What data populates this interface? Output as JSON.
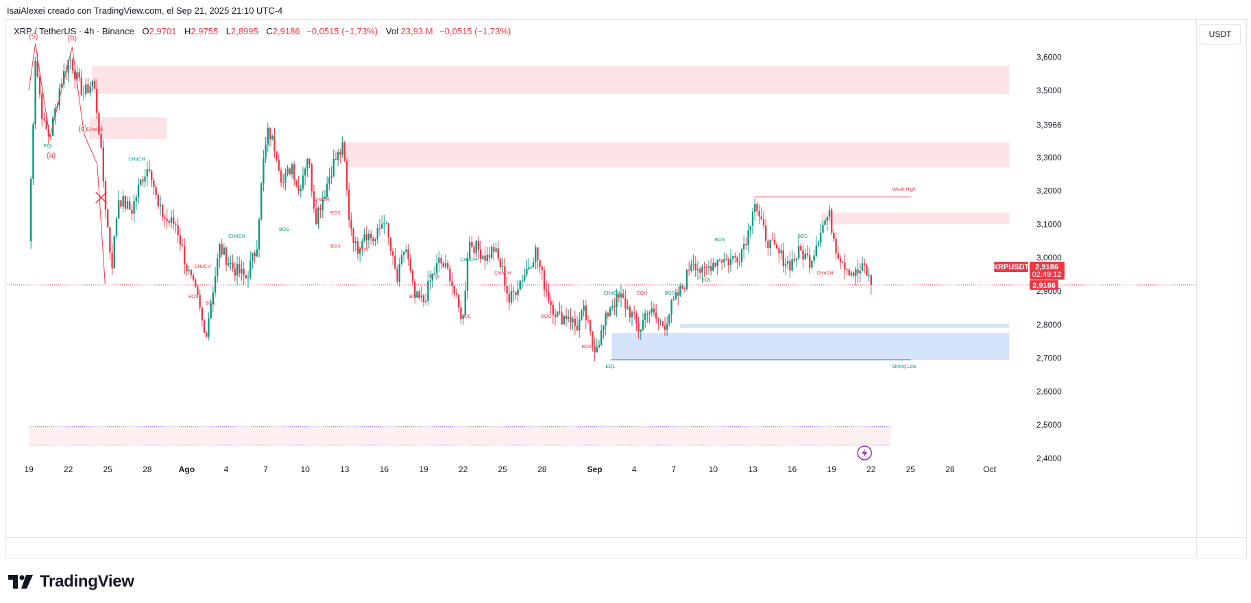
{
  "header": {
    "credit": "IsaiAlexei creado con TradingView.com, el Sep 21, 2025 21:10 UTC-4",
    "symbol": "XRP / TetherUS · 4h · Binance",
    "open_label": "O",
    "open": "2,9701",
    "high_label": "H",
    "high": "2,9755",
    "low_label": "L",
    "low": "2,8995",
    "close_label": "C",
    "close": "2,9186",
    "change": "−0,0515 (−1,73%)",
    "vol_label": "Vol",
    "vol": "23,93 M",
    "vol_change": "−0,0515 (−1,73%)",
    "currency_button": "USDT"
  },
  "branding": {
    "logo_text": "TradingView",
    "logo_icon": "tradingview-logo-icon"
  },
  "chart_data": {
    "type": "candlestick",
    "symbol": "XRPUSDT",
    "timeframe": "4h",
    "ylim": [
      2.37,
      3.68
    ],
    "y_ticks": [
      "3,6000",
      "3,5000",
      "3,3966",
      "3,3000",
      "3,2000",
      "3,1000",
      "3,0000",
      "2,9000",
      "2,8000",
      "2,7000",
      "2,6000",
      "2,5000",
      "2,4000"
    ],
    "y_tick_values": [
      3.6,
      3.5,
      3.3966,
      3.3,
      3.2,
      3.1,
      3.0,
      2.9,
      2.8,
      2.7,
      2.6,
      2.5,
      2.4
    ],
    "x_ticks": [
      "19",
      "22",
      "25",
      "28",
      "Ago",
      "4",
      "7",
      "10",
      "13",
      "16",
      "19",
      "22",
      "25",
      "28",
      "Sep",
      "4",
      "7",
      "10",
      "13",
      "16",
      "19",
      "22",
      "25",
      "28",
      "Oct"
    ],
    "x_tick_days": [
      0,
      3,
      6,
      9,
      12,
      15,
      18,
      21,
      24,
      27,
      30,
      33,
      36,
      39,
      43,
      46,
      49,
      52,
      55,
      58,
      61,
      64,
      67,
      70,
      73
    ],
    "x_bold": [
      "Ago",
      "Sep"
    ],
    "last_price": 2.9186,
    "price_label": "XRPUSDT",
    "price_value": "2,9186",
    "countdown": "02:49:12",
    "price_line_value": "2,9186",
    "colors": {
      "up": "#089981",
      "down": "#f23645",
      "zone_red": "#fce4e6",
      "zone_blue": "#d6e4fb"
    },
    "path": [
      [
        0,
        3.05
      ],
      [
        0.5,
        3.6
      ],
      [
        1.1,
        3.4
      ],
      [
        1.6,
        3.36
      ],
      [
        2.4,
        3.52
      ],
      [
        3.1,
        3.6
      ],
      [
        3.8,
        3.52
      ],
      [
        4.2,
        3.49
      ],
      [
        4.9,
        3.53
      ],
      [
        5.3,
        3.4
      ],
      [
        5.8,
        3.17
      ],
      [
        6.3,
        2.97
      ],
      [
        6.8,
        3.18
      ],
      [
        7.8,
        3.14
      ],
      [
        8.6,
        3.24
      ],
      [
        9.2,
        3.28
      ],
      [
        9.8,
        3.15
      ],
      [
        10.5,
        3.11
      ],
      [
        11.2,
        3.1
      ],
      [
        12.0,
        2.97
      ],
      [
        12.8,
        2.88
      ],
      [
        13.4,
        2.76
      ],
      [
        13.8,
        2.86
      ],
      [
        14.5,
        3.03
      ],
      [
        15.5,
        2.97
      ],
      [
        16.5,
        2.94
      ],
      [
        17.3,
        3.03
      ],
      [
        17.8,
        3.28
      ],
      [
        18.2,
        3.38
      ],
      [
        18.8,
        3.32
      ],
      [
        19.3,
        3.22
      ],
      [
        20.0,
        3.28
      ],
      [
        20.5,
        3.2
      ],
      [
        21.2,
        3.31
      ],
      [
        21.8,
        3.12
      ],
      [
        22.5,
        3.2
      ],
      [
        23.1,
        3.28
      ],
      [
        23.9,
        3.33
      ],
      [
        24.3,
        3.13
      ],
      [
        24.9,
        3.02
      ],
      [
        25.5,
        3.08
      ],
      [
        26.3,
        3.05
      ],
      [
        27.0,
        3.12
      ],
      [
        27.6,
        3.0
      ],
      [
        28.0,
        2.93
      ],
      [
        28.6,
        3.04
      ],
      [
        29.3,
        2.88
      ],
      [
        30.0,
        2.87
      ],
      [
        30.5,
        2.93
      ],
      [
        31.2,
        2.99
      ],
      [
        32.0,
        2.95
      ],
      [
        32.6,
        2.85
      ],
      [
        33.0,
        2.82
      ],
      [
        33.4,
        3.05
      ],
      [
        34.0,
        3.03
      ],
      [
        34.8,
        3.0
      ],
      [
        35.3,
        3.03
      ],
      [
        36.0,
        2.96
      ],
      [
        36.5,
        2.87
      ],
      [
        37.3,
        2.93
      ],
      [
        37.9,
        2.97
      ],
      [
        38.5,
        3.02
      ],
      [
        39.1,
        2.93
      ],
      [
        39.7,
        2.86
      ],
      [
        40.3,
        2.82
      ],
      [
        41.0,
        2.83
      ],
      [
        41.6,
        2.79
      ],
      [
        42.2,
        2.84
      ],
      [
        42.9,
        2.73
      ],
      [
        43.4,
        2.76
      ],
      [
        44.2,
        2.86
      ],
      [
        45.0,
        2.88
      ],
      [
        45.8,
        2.83
      ],
      [
        46.4,
        2.78
      ],
      [
        47.0,
        2.85
      ],
      [
        47.8,
        2.81
      ],
      [
        48.3,
        2.8
      ],
      [
        48.9,
        2.86
      ],
      [
        49.8,
        2.92
      ],
      [
        50.4,
        3.0
      ],
      [
        51.2,
        2.95
      ],
      [
        51.8,
        2.98
      ],
      [
        52.5,
        3.0
      ],
      [
        53.2,
        2.99
      ],
      [
        54.0,
        3.01
      ],
      [
        54.7,
        3.08
      ],
      [
        55.1,
        3.18
      ],
      [
        55.6,
        3.1
      ],
      [
        56.3,
        3.04
      ],
      [
        57.0,
        3.01
      ],
      [
        57.8,
        2.98
      ],
      [
        58.6,
        3.02
      ],
      [
        59.4,
        2.99
      ],
      [
        60.2,
        3.09
      ],
      [
        60.8,
        3.13
      ],
      [
        61.4,
        3.02
      ],
      [
        62.2,
        2.97
      ],
      [
        62.8,
        2.95
      ],
      [
        63.5,
        2.97
      ],
      [
        64.0,
        2.92
      ]
    ],
    "zones": [
      {
        "kind": "supply",
        "x0": 4.8,
        "x1": 74.5,
        "y0": 3.49,
        "y1": 3.575
      },
      {
        "kind": "supply",
        "x0": 4.6,
        "x1": 10.5,
        "y0": 3.355,
        "y1": 3.42
      },
      {
        "kind": "supply",
        "x0": 24.1,
        "x1": 74.5,
        "y0": 3.27,
        "y1": 3.345
      },
      {
        "kind": "supply",
        "x0": 60.2,
        "x1": 74.5,
        "y0": 3.1,
        "y1": 3.135
      },
      {
        "kind": "demand",
        "x0": 49.5,
        "x1": 74.5,
        "y0": 2.79,
        "y1": 2.802
      },
      {
        "kind": "demand",
        "x0": 44.3,
        "x1": 74.5,
        "y0": 2.695,
        "y1": 2.775
      },
      {
        "kind": "light",
        "x0": 0,
        "x1": 65.5,
        "y0": 2.44,
        "y1": 2.495
      }
    ],
    "level_lines": [
      {
        "x0": 55.1,
        "x1": 67.0,
        "y": 3.182,
        "color": "#f23645"
      },
      {
        "x0": 44.2,
        "x1": 67.0,
        "y": 2.695,
        "color": "#089981"
      }
    ],
    "dotted_lines": [
      {
        "x0": 0,
        "x1": 65.5,
        "y": 2.495,
        "color": "#7b61ff"
      },
      {
        "x0": 0,
        "x1": 65.5,
        "y": 2.44,
        "color": "#7b61ff"
      }
    ],
    "structure_labels": [
      {
        "text": "BOS",
        "day": 12.5,
        "price": 2.88,
        "color": "#f23645"
      },
      {
        "text": "BOS",
        "day": 13.8,
        "price": 2.86,
        "color": "#f23645"
      },
      {
        "text": "BOS",
        "day": 19.4,
        "price": 3.08,
        "color": "#089981"
      },
      {
        "text": "BOS",
        "day": 23.3,
        "price": 3.03,
        "color": "#f23645"
      },
      {
        "text": "BOS",
        "day": 25.4,
        "price": 3.02,
        "color": "#f23645"
      },
      {
        "text": "BOS",
        "day": 29.3,
        "price": 2.88,
        "color": "#f23645"
      },
      {
        "text": "BOS",
        "day": 30.8,
        "price": 2.94,
        "color": "#f23645"
      },
      {
        "text": "BOS",
        "day": 33.2,
        "price": 2.82,
        "color": "#f23645"
      },
      {
        "text": "BOS",
        "day": 39.3,
        "price": 2.82,
        "color": "#f23645"
      },
      {
        "text": "BOS",
        "day": 42.4,
        "price": 2.73,
        "color": "#f23645"
      },
      {
        "text": "BOS",
        "day": 48.7,
        "price": 2.89,
        "color": "#089981"
      },
      {
        "text": "BOS",
        "day": 52.5,
        "price": 3.05,
        "color": "#089981"
      },
      {
        "text": "BOS",
        "day": 58.8,
        "price": 3.06,
        "color": "#089981"
      },
      {
        "text": "BOS",
        "day": 23.3,
        "price": 3.13,
        "color": "#f23645"
      },
      {
        "text": "CHoCH",
        "day": 8.2,
        "price": 3.29,
        "color": "#089981"
      },
      {
        "text": "CHoCH",
        "day": 5.0,
        "price": 3.38,
        "color": "#f23645"
      },
      {
        "text": "CHoCH",
        "day": 13.2,
        "price": 2.97,
        "color": "#f23645"
      },
      {
        "text": "CHoCH",
        "day": 15.8,
        "price": 3.06,
        "color": "#089981"
      },
      {
        "text": "CHoCH",
        "day": 22.2,
        "price": 3.17,
        "color": "#f23645"
      },
      {
        "text": "CHoCH",
        "day": 33.4,
        "price": 2.99,
        "color": "#089981"
      },
      {
        "text": "CHoCH",
        "day": 36.0,
        "price": 2.95,
        "color": "#f23645"
      },
      {
        "text": "CHoCH",
        "day": 44.3,
        "price": 2.89,
        "color": "#089981"
      },
      {
        "text": "CHoCH",
        "day": 60.5,
        "price": 2.95,
        "color": "#f23645"
      },
      {
        "text": "EQL",
        "day": 1.5,
        "price": 3.33,
        "color": "#089981"
      },
      {
        "text": "EQL",
        "day": 44.2,
        "price": 2.67,
        "color": "#089981"
      },
      {
        "text": "EQL",
        "day": 51.5,
        "price": 2.93,
        "color": "#089981"
      },
      {
        "text": "EQH",
        "day": 46.6,
        "price": 2.89,
        "color": "#f23645"
      },
      {
        "text": "Weak High",
        "day": 66.5,
        "price": 3.2,
        "color": "#f23645"
      },
      {
        "text": "Strong Low",
        "day": 66.5,
        "price": 2.67,
        "color": "#089981"
      }
    ],
    "wave_labels": [
      {
        "text": "(5)",
        "day": 0.35,
        "price": 3.655
      },
      {
        "text": "(b)",
        "day": 3.3,
        "price": 3.65
      },
      {
        "text": "(c)",
        "day": 4.1,
        "price": 3.38
      },
      {
        "text": "(a)",
        "day": 1.7,
        "price": 3.3
      }
    ],
    "wave_points": [
      [
        0,
        3.5
      ],
      [
        0.5,
        3.64
      ],
      [
        1.6,
        3.36
      ],
      [
        3.3,
        3.63
      ],
      [
        4.2,
        3.37
      ],
      [
        5.2,
        3.28
      ],
      [
        5.8,
        2.92
      ]
    ],
    "cross_marker": {
      "day": 5.5,
      "price": 3.18
    },
    "alert_icon": "lightning-icon"
  }
}
